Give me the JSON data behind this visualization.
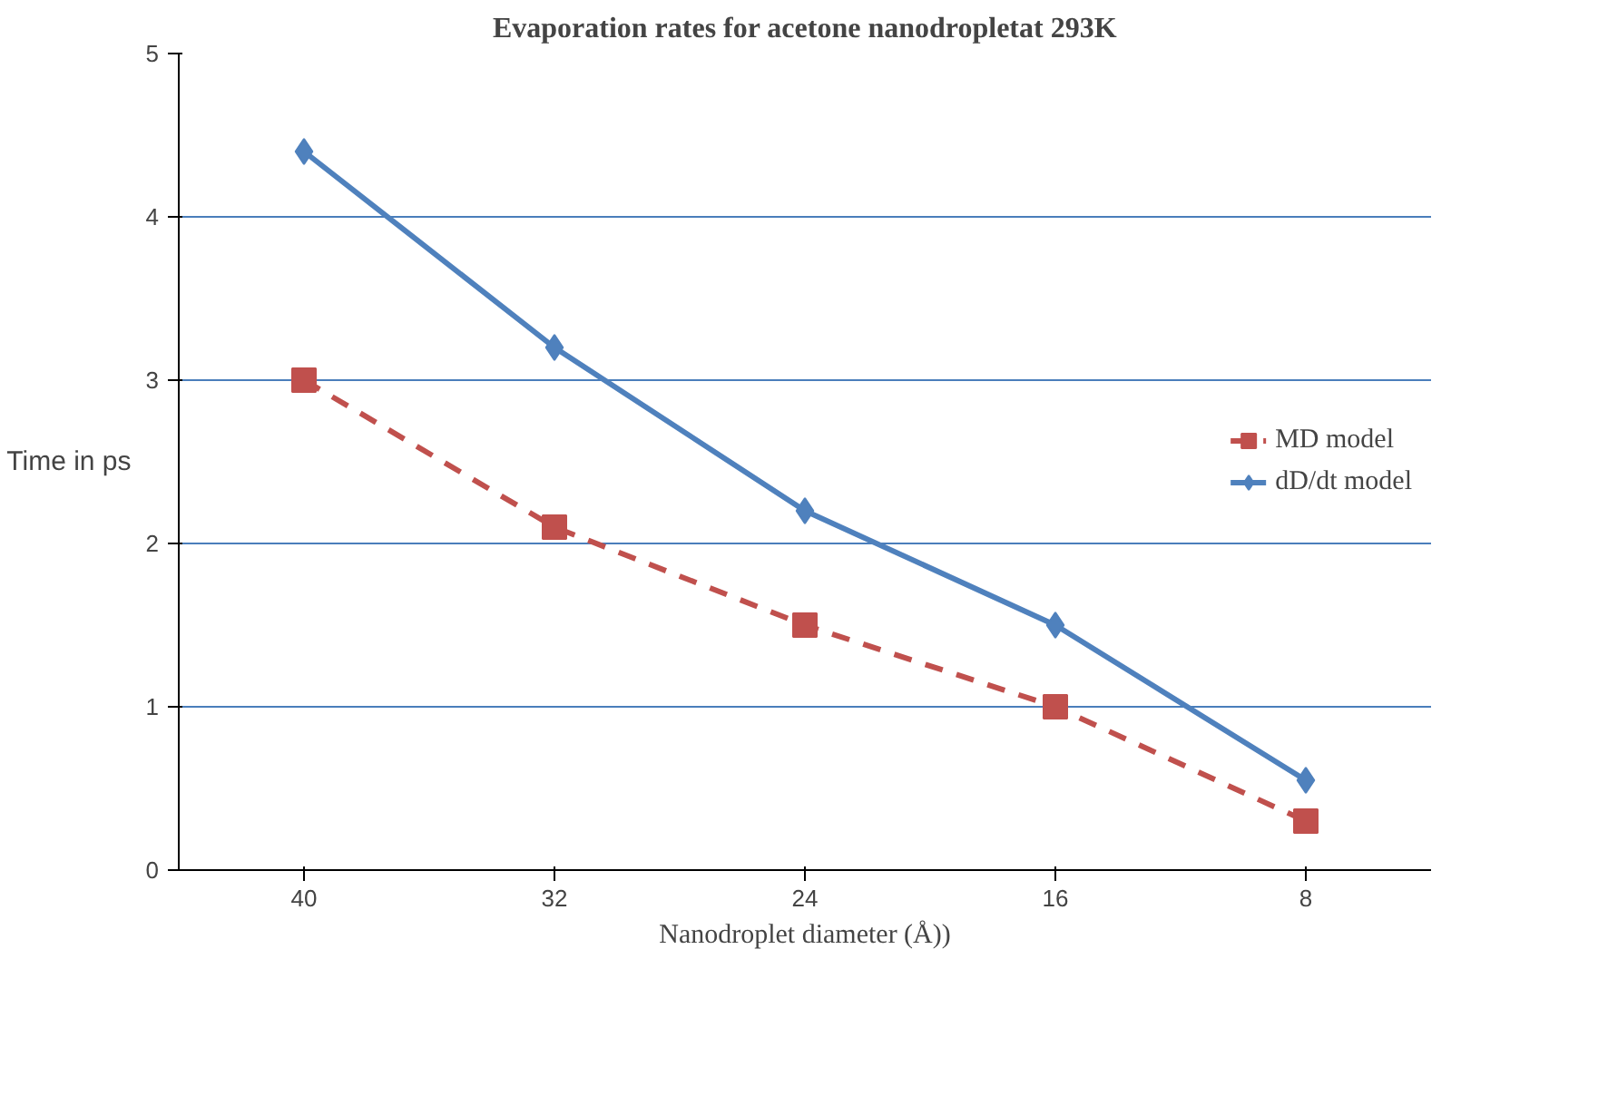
{
  "chart_data": {
    "type": "line",
    "title": "Evaporation rates for acetone nanodropletat 293K",
    "xlabel": "Nanodroplet diameter (Å))",
    "ylabel": "Time in ps",
    "categories": [
      "40",
      "32",
      "24",
      "16",
      "8"
    ],
    "series": [
      {
        "name": "MD model",
        "color": "#c0504d",
        "values": [
          3.0,
          2.1,
          1.5,
          1.0,
          0.3
        ],
        "marker": "square",
        "line_style": "dashed"
      },
      {
        "name": "dD/dt model",
        "color": "#4f81bd",
        "values": [
          4.4,
          3.2,
          2.2,
          1.5,
          0.55
        ],
        "marker": "diamond",
        "line_style": "solid"
      }
    ],
    "ylim": [
      0,
      5
    ],
    "yticks": [
      0,
      1,
      2,
      3,
      4,
      5
    ],
    "grid": "y",
    "legend": "right"
  }
}
